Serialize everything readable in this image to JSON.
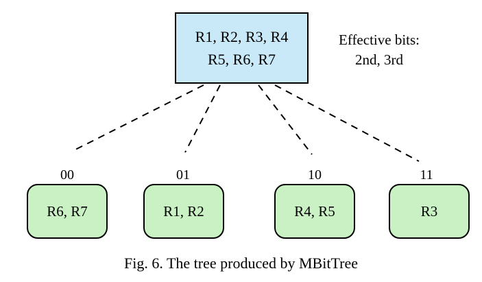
{
  "root": {
    "line1": "R1, R2, R3, R4",
    "line2": "R5, R6, R7"
  },
  "note": {
    "line1": "Effective bits:",
    "line2": "2nd, 3rd"
  },
  "branches": [
    {
      "bits": "00",
      "node": "R6, R7"
    },
    {
      "bits": "01",
      "node": "R1, R2"
    },
    {
      "bits": "10",
      "node": "R4, R5"
    },
    {
      "bits": "11",
      "node": "R3"
    }
  ],
  "caption": "Fig. 6. The tree produced by MBitTree",
  "colors": {
    "root_fill": "#c9e9f8",
    "leaf_fill": "#c9f1c4",
    "edge": "#000000"
  }
}
